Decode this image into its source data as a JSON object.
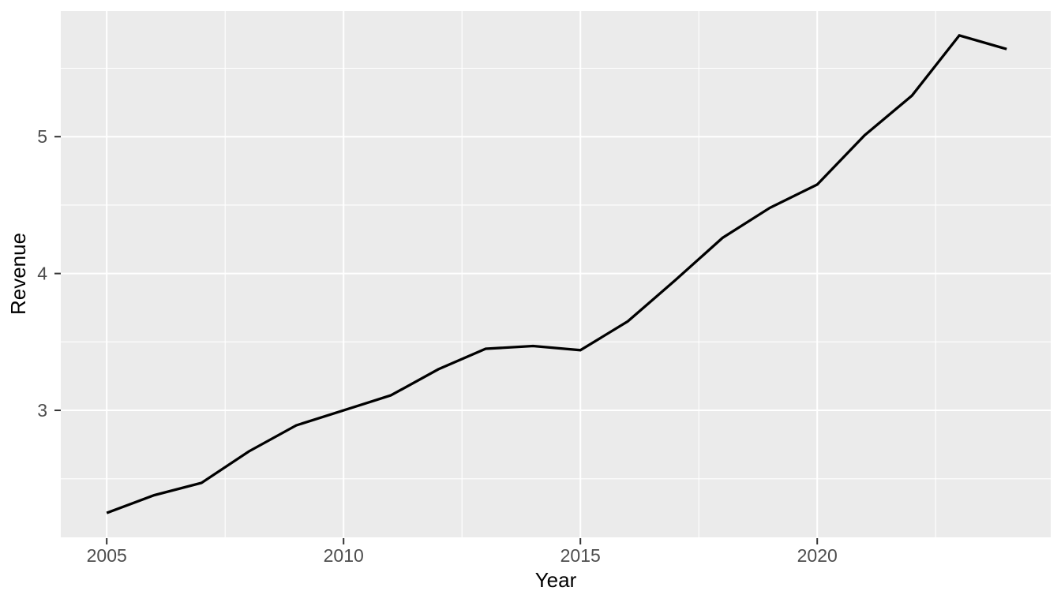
{
  "figure": {
    "background": "#FFFFFF",
    "panel_background": "#EBEBEB",
    "grid_color": "#FFFFFF",
    "line_color": "#000000",
    "tick_label_color": "#4D4D4D",
    "tick_mark_color": "#333333",
    "axis_title_color": "#000000"
  },
  "chart_data": {
    "type": "line",
    "title": "",
    "xlabel": "Year",
    "ylabel": "Revenue",
    "x": [
      2005,
      2006,
      2007,
      2008,
      2009,
      2010,
      2011,
      2012,
      2013,
      2014,
      2015,
      2016,
      2017,
      2018,
      2019,
      2020,
      2021,
      2022,
      2023,
      2024
    ],
    "series": [
      {
        "name": "Revenue",
        "values": [
          2.25,
          2.38,
          2.47,
          2.7,
          2.89,
          3.0,
          3.11,
          3.3,
          3.45,
          3.47,
          3.44,
          3.65,
          3.95,
          4.26,
          4.48,
          4.65,
          5.01,
          5.3,
          5.74,
          5.64
        ]
      }
    ],
    "xlim": [
      2004.03,
      2024.93
    ],
    "ylim": [
      2.072,
      5.918
    ],
    "x_ticks": {
      "major": [
        2005,
        2010,
        2015,
        2020
      ],
      "minor": [
        2007.5,
        2012.5,
        2017.5,
        2022.5
      ],
      "labels": [
        "2005",
        "2010",
        "2015",
        "2020"
      ]
    },
    "y_ticks": {
      "major": [
        3,
        4,
        5
      ],
      "minor": [
        2.5,
        3.5,
        4.5,
        5.5
      ],
      "labels": [
        "3",
        "4",
        "5"
      ]
    },
    "grid": true,
    "legend": false
  }
}
